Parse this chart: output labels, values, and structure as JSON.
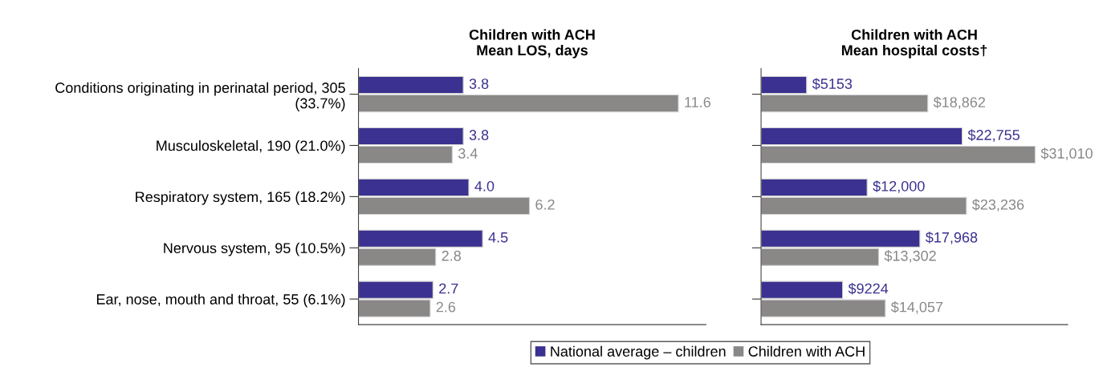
{
  "chart_data": [
    {
      "type": "bar",
      "orientation": "horizontal",
      "title": "Children with ACH\nMean LOS, days",
      "categories": [
        "Conditions originating in perinatal period, 305\n(33.7%)",
        "Musculoskeletal, 190 (21.0%)",
        "Respiratory system, 165 (18.2%)",
        "Nervous system, 95 (10.5%)",
        "Ear, nose, mouth and throat, 55 (6.1%)"
      ],
      "series": [
        {
          "name": "National average – children",
          "color": "#3a3190",
          "values": [
            3.8,
            3.8,
            4.0,
            4.5,
            2.7
          ],
          "value_labels": [
            "3.8",
            "3.8",
            "4.0",
            "4.5",
            "2.7"
          ]
        },
        {
          "name": "Children with ACH",
          "color": "#8a8787",
          "values": [
            11.6,
            3.4,
            6.2,
            2.8,
            2.6
          ]
        }
      ],
      "xlim": [
        0,
        12.6
      ],
      "data_labels": true,
      "tick_labels": "y",
      "legend": "bottom",
      "grid": false
    },
    {
      "type": "bar",
      "orientation": "horizontal",
      "title": "Children with ACH\nMean hospital costs†",
      "categories": [
        null,
        null,
        null,
        null,
        null
      ],
      "series": [
        {
          "color": "#3a3190",
          "values": [
            5153,
            22755,
            12000,
            17968,
            9224
          ],
          "value_labels": [
            "$5153",
            "$22,755",
            "$12,000",
            "$17,968",
            "$9224"
          ]
        },
        {
          "color": "#8a8787",
          "values": [
            18862,
            31010,
            23236,
            13302,
            14057
          ],
          "value_labels": [
            "$18,862",
            "$31,010",
            "$23,236",
            "$13,302",
            "$14,057"
          ]
        }
      ],
      "xlim": [
        0,
        34700
      ],
      "tick_labels": false,
      "grid": false
    }
  ]
}
